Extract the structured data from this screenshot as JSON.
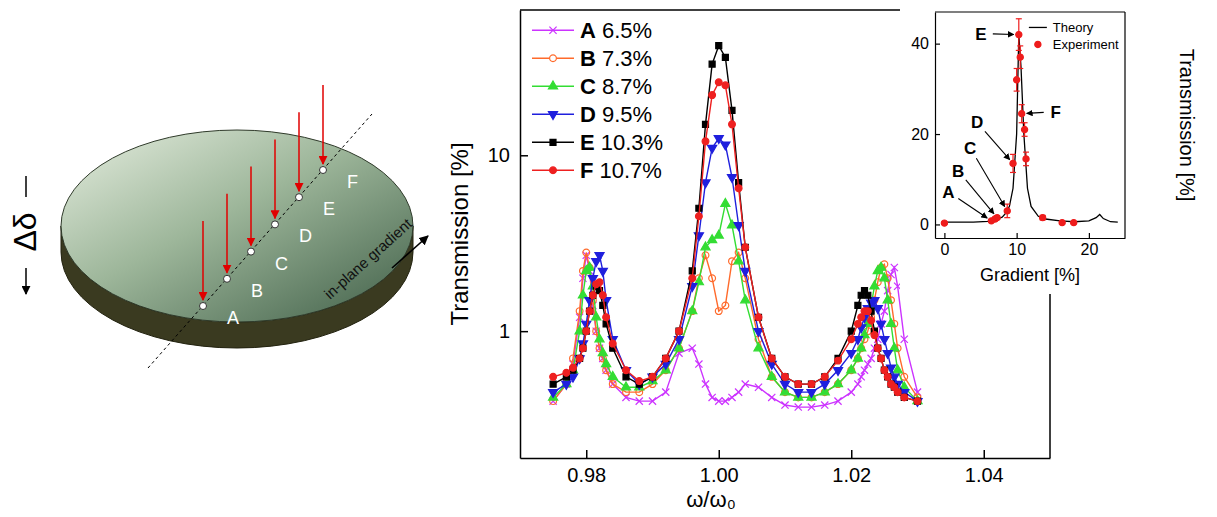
{
  "diagram": {
    "points": [
      "A",
      "B",
      "C",
      "D",
      "E",
      "F"
    ],
    "gradient_label": "in-plane gradient",
    "thickness_label": "Δδ"
  },
  "chart_data": [
    {
      "type": "line",
      "x_label": "ω/ω₀",
      "y_label": "Transmission [%]",
      "log": "y",
      "xlim": [
        0.97,
        1.05
      ],
      "xticks": [
        0.98,
        {
          "value": 1,
          "label": "1.00"
        },
        1.02,
        1.04
      ],
      "ylim": [
        0.19,
        67
      ],
      "yticks": [
        1,
        10
      ],
      "legend": "top-left",
      "x": [
        0.975,
        0.977,
        0.978,
        0.979,
        0.9795,
        0.98,
        0.9805,
        0.981,
        0.9815,
        0.982,
        0.9825,
        0.983,
        0.984,
        0.986,
        0.988,
        0.99,
        0.992,
        0.994,
        0.996,
        0.997,
        0.998,
        0.999,
        1.0,
        1.001,
        1.002,
        1.003,
        1.004,
        1.006,
        1.008,
        1.01,
        1.012,
        1.014,
        1.016,
        1.018,
        1.02,
        1.021,
        1.0215,
        1.022,
        1.0225,
        1.023,
        1.0235,
        1.024,
        1.0245,
        1.025,
        1.0255,
        1.026,
        1.0265,
        1.027,
        1.028,
        1.03
      ],
      "series": [
        {
          "name": "A 6.5%",
          "color": "#cc33ff",
          "marker": "x",
          "line_style": "solid",
          "values": [
            0.4,
            0.5,
            0.65,
            1.2,
            2.0,
            2.7,
            2.2,
            1.4,
            1.0,
            0.8,
            0.7,
            0.6,
            0.5,
            0.42,
            0.4,
            0.4,
            0.45,
            0.75,
            0.8,
            0.65,
            0.5,
            0.42,
            0.4,
            0.4,
            0.42,
            0.45,
            0.5,
            0.48,
            0.42,
            0.38,
            0.37,
            0.37,
            0.38,
            0.4,
            0.45,
            0.5,
            0.55,
            0.6,
            0.65,
            0.7,
            0.8,
            0.9,
            1.1,
            1.3,
            1.7,
            2.1,
            2.3,
            1.8,
            0.9,
            0.45
          ]
        },
        {
          "name": "B 7.3%",
          "color": "#ff6a2b",
          "marker": "circle-open",
          "line_style": "solid",
          "values": [
            0.4,
            0.5,
            0.7,
            1.3,
            2.2,
            2.8,
            2.3,
            1.5,
            1.0,
            0.8,
            0.7,
            0.6,
            0.5,
            0.45,
            0.45,
            0.5,
            0.6,
            0.8,
            1.3,
            2.0,
            2.7,
            2.0,
            1.3,
            1.4,
            2.5,
            2.8,
            2.0,
            0.9,
            0.55,
            0.45,
            0.42,
            0.42,
            0.45,
            0.5,
            0.6,
            0.7,
            0.8,
            0.9,
            1.0,
            1.2,
            1.5,
            1.9,
            2.3,
            2.4,
            2.0,
            1.5,
            1.1,
            0.8,
            0.55,
            0.42
          ]
        },
        {
          "name": "C 8.7%",
          "color": "#33dd33",
          "marker": "triangle",
          "line_style": "solid",
          "values": [
            0.42,
            0.5,
            0.6,
            1.0,
            1.6,
            2.2,
            2.3,
            1.8,
            1.2,
            0.9,
            0.75,
            0.65,
            0.55,
            0.48,
            0.48,
            0.52,
            0.6,
            0.8,
            1.3,
            1.9,
            3.0,
            3.3,
            3.5,
            5.3,
            4.0,
            2.5,
            1.5,
            0.8,
            0.55,
            0.45,
            0.42,
            0.42,
            0.45,
            0.5,
            0.6,
            0.7,
            0.8,
            0.95,
            1.1,
            1.4,
            1.8,
            2.2,
            2.3,
            2.0,
            1.5,
            1.1,
            0.8,
            0.6,
            0.48,
            0.4
          ]
        },
        {
          "name": "D 9.5%",
          "color": "#1f1fdd",
          "marker": "triangle-down",
          "line_style": "solid",
          "values": [
            0.45,
            0.5,
            0.55,
            0.7,
            0.85,
            1.1,
            1.5,
            2.0,
            2.5,
            2.7,
            2.2,
            1.5,
            0.9,
            0.6,
            0.5,
            0.55,
            0.65,
            0.9,
            1.8,
            3.5,
            7.0,
            11.0,
            12.5,
            11.5,
            7.5,
            4.0,
            2.2,
            1.0,
            0.65,
            0.5,
            0.45,
            0.45,
            0.5,
            0.6,
            0.75,
            0.9,
            1.05,
            1.2,
            1.35,
            1.45,
            1.5,
            1.35,
            1.1,
            0.9,
            0.75,
            0.62,
            0.55,
            0.5,
            0.45,
            0.4
          ]
        },
        {
          "name": "E 10.3%",
          "color": "#000000",
          "marker": "square",
          "line_style": "solid",
          "values": [
            0.5,
            0.55,
            0.6,
            0.7,
            0.8,
            1.0,
            1.3,
            1.6,
            1.8,
            1.7,
            1.4,
            1.1,
            0.8,
            0.55,
            0.5,
            0.55,
            0.7,
            1.0,
            2.2,
            5.0,
            15,
            33,
            42,
            36,
            18,
            7,
            3,
            1.2,
            0.7,
            0.55,
            0.5,
            0.5,
            0.55,
            0.7,
            1.0,
            1.4,
            1.6,
            1.7,
            1.6,
            1.3,
            1.0,
            0.8,
            0.7,
            0.6,
            0.55,
            0.5,
            0.48,
            0.45,
            0.42,
            0.4
          ]
        },
        {
          "name": "F 10.7%",
          "color": "#ee2020",
          "marker": "circle",
          "line_style": "solid",
          "values": [
            0.55,
            0.58,
            0.62,
            0.7,
            0.8,
            1.0,
            1.3,
            1.6,
            1.85,
            1.9,
            1.6,
            1.2,
            0.85,
            0.6,
            0.52,
            0.55,
            0.7,
            1.0,
            2.0,
            4.5,
            12,
            22,
            26,
            25,
            15,
            6.5,
            3.0,
            1.2,
            0.7,
            0.55,
            0.5,
            0.5,
            0.55,
            0.68,
            0.9,
            1.1,
            1.2,
            1.3,
            1.3,
            1.15,
            0.95,
            0.8,
            0.7,
            0.6,
            0.55,
            0.5,
            0.48,
            0.45,
            0.42,
            0.4
          ]
        }
      ]
    },
    {
      "type": "line",
      "x_label": "Gradient [%]",
      "y_label": "Transmission [%]",
      "xlim": [
        -1.3,
        25
      ],
      "xticks": [
        0,
        10,
        20
      ],
      "ylim": [
        -3,
        47
      ],
      "yticks": [
        0,
        20,
        40
      ],
      "legend": "top-right",
      "series": [
        {
          "name": "Theory",
          "type": "line",
          "color": "#000000",
          "line_style": "solid",
          "x": [
            0,
            2,
            4,
            6,
            7,
            8,
            8.5,
            9,
            9.5,
            10,
            10.3,
            10.6,
            11,
            11.5,
            12,
            13,
            14,
            16,
            18,
            20,
            21,
            21.5,
            22,
            23,
            24
          ],
          "values": [
            0.5,
            0.5,
            0.5,
            0.7,
            1,
            1.6,
            2.5,
            4,
            8,
            20,
            42,
            35,
            20,
            8,
            4,
            1.8,
            1.2,
            0.8,
            0.6,
            0.8,
            1.5,
            2.2,
            1.3,
            0.6,
            0.5
          ]
        },
        {
          "name": "Experiment",
          "type": "scatter",
          "color": "#ee1c1c",
          "marker": "circle",
          "x": [
            0,
            6.5,
            7,
            7.3,
            8.7,
            9.5,
            10,
            10.3,
            10.5,
            10.7,
            11.1,
            11.3,
            13.6,
            16.3,
            17.9
          ],
          "values": [
            0.3,
            0.8,
            1.2,
            1.5,
            3,
            13.5,
            32,
            42,
            37,
            24.5,
            21,
            14.5,
            1.5,
            0.4,
            0.4
          ],
          "errors": [
            0.3,
            0.3,
            0.4,
            0.4,
            1.5,
            2,
            2.5,
            3.5,
            2.5,
            2,
            1.5,
            1.5,
            0.5,
            0.2,
            0.2
          ]
        }
      ],
      "annotations": [
        {
          "text": "A",
          "x": 6.5,
          "y": 0.8
        },
        {
          "text": "B",
          "x": 7.3,
          "y": 1.5
        },
        {
          "text": "C",
          "x": 8.7,
          "y": 3
        },
        {
          "text": "D",
          "x": 9.5,
          "y": 13.5
        },
        {
          "text": "E",
          "x": 10.3,
          "y": 42
        },
        {
          "text": "F",
          "x": 10.7,
          "y": 24.5
        }
      ]
    }
  ]
}
